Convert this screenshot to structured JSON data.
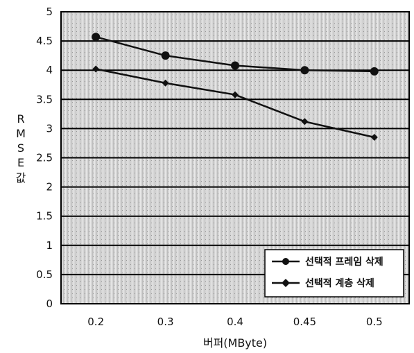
{
  "chart_data": {
    "type": "line",
    "categories": [
      "0.2",
      "0.3",
      "0.4",
      "0.45",
      "0.5"
    ],
    "series": [
      {
        "name": "선택적 프레임 삭제",
        "values": [
          4.57,
          4.25,
          4.08,
          4.0,
          3.98
        ],
        "marker": "circle"
      },
      {
        "name": "선택적 계층 삭제",
        "values": [
          4.02,
          3.78,
          3.58,
          3.12,
          2.85
        ],
        "marker": "diamond"
      }
    ],
    "title": "",
    "xlabel": "버퍼(MByte)",
    "ylabel_chars": [
      "R",
      "M",
      "S",
      "E",
      "값"
    ],
    "ylim": [
      0,
      5
    ],
    "yticks": [
      "0",
      "0.5",
      "1",
      "1.5",
      "2",
      "2.5",
      "3",
      "3.5",
      "4",
      "4.5",
      "5"
    ],
    "grid": true,
    "legend_position": "bottom-right",
    "colors": {
      "line": "#111111",
      "plot_background": "#d9d9d9",
      "grid": "#000000"
    }
  }
}
